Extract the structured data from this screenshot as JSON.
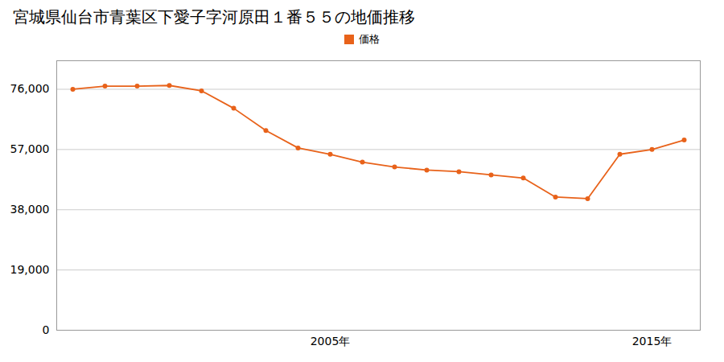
{
  "chart_data": {
    "type": "line",
    "title": "宮城県仙台市青葉区下愛子字河原田１番５５の地価推移",
    "x": [
      1997,
      1998,
      1999,
      2000,
      2001,
      2002,
      2003,
      2004,
      2005,
      2006,
      2007,
      2008,
      2009,
      2010,
      2011,
      2012,
      2013,
      2014,
      2015,
      2016
    ],
    "series": [
      {
        "name": "価格",
        "color": "#e8621a",
        "marker": "circle",
        "line_style": "solid",
        "values": [
          76000,
          77000,
          77000,
          77200,
          75500,
          70000,
          63000,
          57500,
          55500,
          53000,
          51500,
          50500,
          50000,
          49000,
          48000,
          42000,
          41500,
          55500,
          57000,
          60000
        ]
      }
    ],
    "xlim": [
      1996.5,
      2016.5
    ],
    "xticks": [
      {
        "value": 2005,
        "label": "2005年"
      },
      {
        "value": 2015,
        "label": "2015年"
      }
    ],
    "ylim": [
      0,
      85000
    ],
    "yticks": [
      0,
      {
        "value": 19000,
        "label": "19,000"
      },
      {
        "value": 38000,
        "label": "38,000"
      },
      {
        "value": 57000,
        "label": "57,000"
      },
      {
        "value": 76000,
        "label": "76,000"
      }
    ],
    "grid": "y",
    "legend": "top"
  }
}
